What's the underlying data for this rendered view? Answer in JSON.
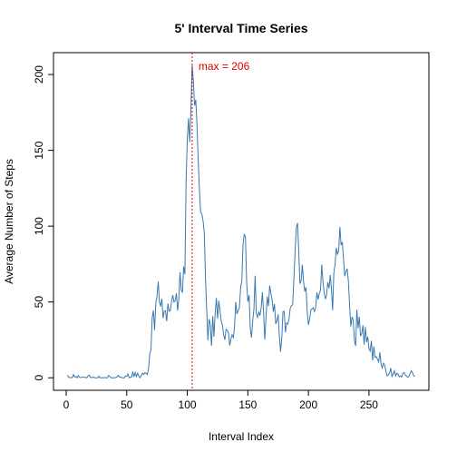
{
  "chart_data": {
    "type": "line",
    "title": "5' Interval Time Series",
    "xlabel": "Interval Index",
    "ylabel": "Average Number of Steps",
    "x": [
      1,
      2,
      3,
      4,
      5,
      6,
      7,
      8,
      9,
      10,
      11,
      12,
      13,
      14,
      15,
      16,
      17,
      18,
      19,
      20,
      21,
      22,
      23,
      24,
      25,
      26,
      27,
      28,
      29,
      30,
      31,
      32,
      33,
      34,
      35,
      36,
      37,
      38,
      39,
      40,
      41,
      42,
      43,
      44,
      45,
      46,
      47,
      48,
      49,
      50,
      51,
      52,
      53,
      54,
      55,
      56,
      57,
      58,
      59,
      60,
      61,
      62,
      63,
      64,
      65,
      66,
      67,
      68,
      69,
      70,
      71,
      72,
      73,
      74,
      75,
      76,
      77,
      78,
      79,
      80,
      81,
      82,
      83,
      84,
      85,
      86,
      87,
      88,
      89,
      90,
      91,
      92,
      93,
      94,
      95,
      96,
      97,
      98,
      99,
      100,
      101,
      102,
      103,
      104,
      105,
      106,
      107,
      108,
      109,
      110,
      111,
      112,
      113,
      114,
      115,
      116,
      117,
      118,
      119,
      120,
      121,
      122,
      123,
      124,
      125,
      126,
      127,
      128,
      129,
      130,
      131,
      132,
      133,
      134,
      135,
      136,
      137,
      138,
      139,
      140,
      141,
      142,
      143,
      144,
      145,
      146,
      147,
      148,
      149,
      150,
      151,
      152,
      153,
      154,
      155,
      156,
      157,
      158,
      159,
      160,
      161,
      162,
      163,
      164,
      165,
      166,
      167,
      168,
      169,
      170,
      171,
      172,
      173,
      174,
      175,
      176,
      177,
      178,
      179,
      180,
      181,
      182,
      183,
      184,
      185,
      186,
      187,
      188,
      189,
      190,
      191,
      192,
      193,
      194,
      195,
      196,
      197,
      198,
      199,
      200,
      201,
      202,
      203,
      204,
      205,
      206,
      207,
      208,
      209,
      210,
      211,
      212,
      213,
      214,
      215,
      216,
      217,
      218,
      219,
      220,
      221,
      222,
      223,
      224,
      225,
      226,
      227,
      228,
      229,
      230,
      231,
      232,
      233,
      234,
      235,
      236,
      237,
      238,
      239,
      240,
      241,
      242,
      243,
      244,
      245,
      246,
      247,
      248,
      249,
      250,
      251,
      252,
      253,
      254,
      255,
      256,
      257,
      258,
      259,
      260,
      261,
      262,
      263,
      264,
      265,
      266,
      267,
      268,
      269,
      270,
      271,
      272,
      273,
      274,
      275,
      276,
      277,
      278,
      279,
      280,
      281,
      282,
      283,
      284,
      285,
      286,
      287,
      288
    ],
    "series": [
      {
        "name": "steps",
        "color": "#3a78b0",
        "values": [
          1.72,
          0.34,
          0.13,
          0.15,
          0.08,
          2.09,
          0.53,
          0.87,
          0,
          1.47,
          0.3,
          0.13,
          0.32,
          0.68,
          0.15,
          0.34,
          0,
          1.11,
          1.83,
          0.17,
          0.17,
          0.38,
          0.26,
          0,
          0,
          0,
          1.13,
          0,
          0,
          0.13,
          0,
          0.23,
          0,
          0,
          1.55,
          0.94,
          0,
          0,
          0,
          0,
          0.21,
          0.62,
          1.62,
          0.58,
          0.49,
          0.08,
          0,
          0,
          1.19,
          0.94,
          2.57,
          0,
          0.34,
          0.36,
          4.11,
          0.66,
          3.49,
          0.83,
          3.11,
          1.11,
          0,
          1.57,
          3,
          2.25,
          3.32,
          2.96,
          2.09,
          6.06,
          16.02,
          18.34,
          39.45,
          44.49,
          31.49,
          49.26,
          53.77,
          63.45,
          49.96,
          47.08,
          52.15,
          39.34,
          44.02,
          44.17,
          37.36,
          49.04,
          43.81,
          44.38,
          50.51,
          54.51,
          49.92,
          50.98,
          55.68,
          44.32,
          52.26,
          69.55,
          57.85,
          56.15,
          73.38,
          68.21,
          129.43,
          157.53,
          171.15,
          155.4,
          177.3,
          206.17,
          195.92,
          179.57,
          183.4,
          167.02,
          143.45,
          124.04,
          109.11,
          108.11,
          103.72,
          95.96,
          66.21,
          45.23,
          24.79,
          38.75,
          34.98,
          21.06,
          40.57,
          26.98,
          42.42,
          52.66,
          38.92,
          50.79,
          44.28,
          37.42,
          34.7,
          28.34,
          25.09,
          31.94,
          31.36,
          29.68,
          21.32,
          25.55,
          28.38,
          26.47,
          33.43,
          49.98,
          42.04,
          44.6,
          46.04,
          59.19,
          63.87,
          87.7,
          94.85,
          92.77,
          63.4,
          50.17,
          54.47,
          32.42,
          26.53,
          37.74,
          45.06,
          67.28,
          42.34,
          39.89,
          43.26,
          40.98,
          46.25,
          56.43,
          42.75,
          25.13,
          39.96,
          53.55,
          47.32,
          60.81,
          55.75,
          51.96,
          43.58,
          48.7,
          35.47,
          37.55,
          41.85,
          27.51,
          17.11,
          26.08,
          43.62,
          43.77,
          30.02,
          36.08,
          35.49,
          38.85,
          45.96,
          47.75,
          48.13,
          65.32,
          82.91,
          98.66,
          102.11,
          83.96,
          62.13,
          64.13,
          74.55,
          63.17,
          56.91,
          59.77,
          43.87,
          35.02,
          38.57,
          44.66,
          45.45,
          46.21,
          43.68,
          46.62,
          56.3,
          51.66,
          55.68,
          58.02,
          74.7,
          63.4,
          56.4,
          51.9,
          54.5,
          63.0,
          59.0,
          67.8,
          58.6,
          44.5,
          69.3,
          74.4,
          85.8,
          81.2,
          84.1,
          99.5,
          87.5,
          89.5,
          78.0,
          67.0,
          70.1,
          72.0,
          63.7,
          48.0,
          33.8,
          40.2,
          38.1,
          24.5,
          21.0,
          44.9,
          32.7,
          40.2,
          27.5,
          29.2,
          34.6,
          21.9,
          33.4,
          23.5,
          27.1,
          19.2,
          17.6,
          24.4,
          11.4,
          20.7,
          13.5,
          14.0,
          12.3,
          10.5,
          16.8,
          8.9,
          6.5,
          9.6,
          8.5,
          4.1,
          1.3,
          2.0,
          3.2,
          6.4,
          0.9,
          2.6,
          4.6,
          1.2,
          3.0,
          2.4,
          0.6,
          1.3,
          0.4,
          2.9,
          3.5,
          1.9,
          1.1,
          0.3,
          1.0,
          2.9,
          4.7,
          3.3,
          1.1,
          1.1
        ]
      }
    ],
    "xlim": [
      -10.48,
      299.48
    ],
    "xticks": [
      0,
      50,
      100,
      150,
      200,
      250
    ],
    "ylim": [
      -8.25,
      214.42
    ],
    "yticks": [
      0,
      50,
      100,
      150,
      200
    ],
    "annotation": {
      "text": "max =  206",
      "x": 104,
      "color": "#e00000"
    }
  }
}
